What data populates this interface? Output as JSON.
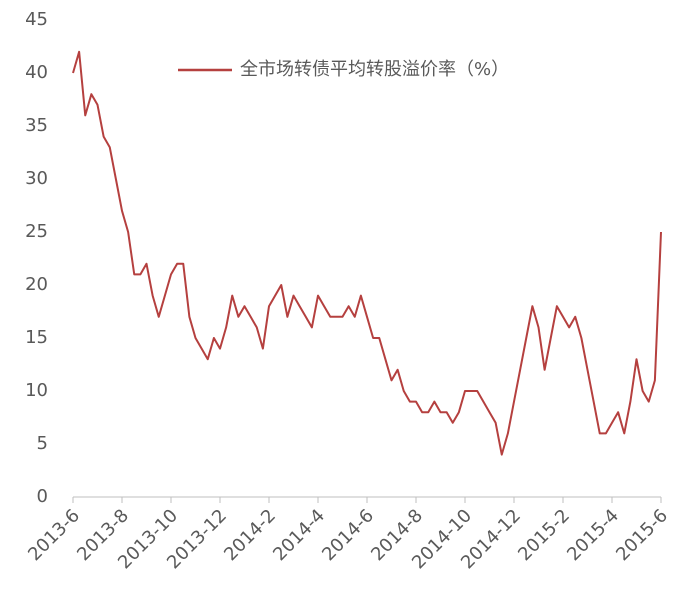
{
  "chart_data": {
    "type": "line",
    "categories": [
      "2013-6",
      null,
      null,
      null,
      null,
      null,
      null,
      null,
      "2013-8",
      null,
      null,
      null,
      null,
      null,
      null,
      null,
      "2013-10",
      null,
      null,
      null,
      null,
      null,
      null,
      null,
      "2013-12",
      null,
      null,
      null,
      null,
      null,
      null,
      null,
      "2014-2",
      null,
      null,
      null,
      null,
      null,
      null,
      null,
      "2014-4",
      null,
      null,
      null,
      null,
      null,
      null,
      null,
      "2014-6",
      null,
      null,
      null,
      null,
      null,
      null,
      null,
      "2014-8",
      null,
      null,
      null,
      null,
      null,
      null,
      null,
      "2014-10",
      null,
      null,
      null,
      null,
      null,
      null,
      null,
      "2014-12",
      null,
      null,
      null,
      null,
      null,
      null,
      null,
      "2015-2",
      null,
      null,
      null,
      null,
      null,
      null,
      null,
      "2015-4",
      null,
      null,
      null,
      null,
      null,
      null,
      null,
      "2015-6"
    ],
    "series": [
      {
        "name": "全市场转债平均转股溢价率（%）",
        "color": "#b5403f",
        "values": [
          40,
          42,
          36,
          38,
          37,
          34,
          33,
          30,
          27,
          25,
          21,
          21,
          22,
          19,
          17,
          19,
          21,
          22,
          22,
          17,
          15,
          14,
          13,
          15,
          14,
          16,
          19,
          17,
          18,
          17,
          16,
          14,
          18,
          19,
          20,
          17,
          19,
          18,
          17,
          16,
          19,
          18,
          17,
          17,
          17,
          18,
          17,
          19,
          17,
          15,
          15,
          13,
          11,
          12,
          10,
          9,
          9,
          8,
          8,
          9,
          8,
          8,
          7,
          8,
          10,
          10,
          10,
          9,
          8,
          7,
          4,
          6,
          9,
          12,
          15,
          18,
          16,
          12,
          15,
          18,
          17,
          16,
          17,
          15,
          12,
          9,
          6,
          6,
          7,
          8,
          6,
          9,
          13,
          10,
          9,
          11,
          25
        ]
      }
    ],
    "ylim": [
      0,
      45
    ],
    "yticks": [
      0,
      5,
      10,
      15,
      20,
      25,
      30,
      35,
      40,
      45
    ]
  }
}
